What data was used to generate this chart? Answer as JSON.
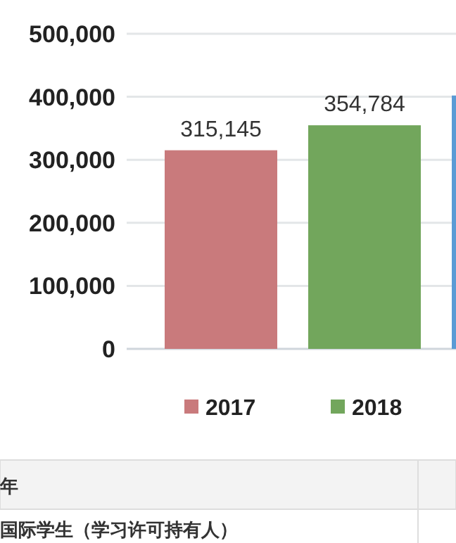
{
  "chart_data": {
    "type": "bar",
    "categories": [
      null
    ],
    "series": [
      {
        "name": "2017",
        "color": "#c97a7c",
        "values": [
          315145
        ],
        "value_labels": [
          "315,145"
        ]
      },
      {
        "name": "2018",
        "color": "#72a65c",
        "values": [
          354784
        ],
        "value_labels": [
          "354,784"
        ]
      },
      {
        "color": "#5b9bd5",
        "values": [
          402000
        ],
        "value_labels": [
          null
        ]
      }
    ],
    "ylim": [
      0,
      500000
    ],
    "yticks": [
      {
        "value": 0,
        "label": "0"
      },
      {
        "value": 100000,
        "label": "100,000"
      },
      {
        "value": 200000,
        "label": "200,000"
      },
      {
        "value": 300000,
        "label": "300,000"
      },
      {
        "value": 400000,
        "label": "400,000"
      },
      {
        "value": 500000,
        "label": "500,000"
      }
    ],
    "grid": "y",
    "legend": "bottom",
    "annotations": [
      "年",
      "国际学生（学习许可持有人）"
    ]
  }
}
